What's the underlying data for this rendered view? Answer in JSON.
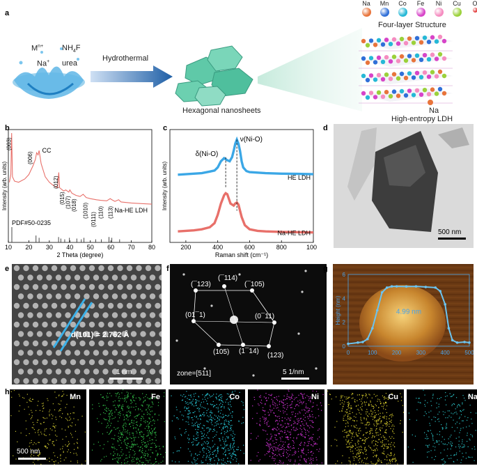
{
  "panel_labels": [
    "a",
    "b",
    "c",
    "d",
    "e",
    "f",
    "g",
    "h"
  ],
  "panel_a": {
    "reagents": {
      "metal": "M",
      "metal_sup": "n+",
      "fluoride": "NH",
      "fluoride_sub": "4",
      "fluoride_tail": "F",
      "sodium": "Na",
      "sodium_sup": "+",
      "urea": "urea"
    },
    "arrow_label": "Hydrothermal",
    "sheets_label": "Hexagonal nanosheets",
    "structure_title": "Four-layer Structure",
    "structure_caption": "High-entropy LDH",
    "na_callout": "Na",
    "legend": [
      {
        "label": "Na",
        "color": "#e8743b"
      },
      {
        "label": "Mn",
        "color": "#2f6fd8"
      },
      {
        "label": "Co",
        "color": "#25b8d6"
      },
      {
        "label": "Fe",
        "color": "#d744c8"
      },
      {
        "label": "Ni",
        "color": "#f58cc0"
      },
      {
        "label": "Cu",
        "color": "#9bd13a"
      },
      {
        "label": "O",
        "color": "#e23b3b"
      },
      {
        "label": "H",
        "color": "#e6d23a"
      }
    ]
  },
  "chart_data": [
    {
      "type": "line",
      "panel": "b",
      "xlabel": "2 Theta (degree)",
      "ylabel": "Intensity (arb. units)",
      "xlim": [
        10,
        80
      ],
      "xticks": [
        10,
        20,
        30,
        40,
        50,
        60,
        70,
        80
      ],
      "series_label": "Na-HE LDH",
      "reference_label": "PDF#50-0235",
      "peak_labels": [
        "(003)",
        "(006)",
        "CC",
        "(012)",
        "(015)",
        "(107)",
        "(018)",
        "(1010)",
        "(0111)",
        "(110)",
        "(113)"
      ],
      "reference_lines": [
        11.7,
        23.5,
        25.0,
        34.5,
        35.6,
        37.5,
        39.8,
        43.4,
        45.6,
        46.9,
        52.6,
        55.4,
        59.1,
        60.5,
        64.3
      ],
      "reference_heights": [
        1,
        0.45,
        0.3,
        0.35,
        0.25,
        0.2,
        0.3,
        0.25,
        0.2,
        0.3,
        0.2,
        0.2,
        0.35,
        0.3,
        0.2
      ],
      "pattern": [
        [
          10.5,
          0.55
        ],
        [
          11.2,
          0.62
        ],
        [
          11.6,
          1.0
        ],
        [
          12.0,
          0.6
        ],
        [
          13,
          0.56
        ],
        [
          15,
          0.55
        ],
        [
          18,
          0.58
        ],
        [
          20,
          0.62
        ],
        [
          22,
          0.7
        ],
        [
          23.2,
          0.76
        ],
        [
          23.8,
          0.82
        ],
        [
          24.5,
          0.8
        ],
        [
          25,
          0.84
        ],
        [
          25.5,
          0.78
        ],
        [
          26,
          0.72
        ],
        [
          27,
          0.66
        ],
        [
          28,
          0.6
        ],
        [
          30,
          0.55
        ],
        [
          32,
          0.52
        ],
        [
          34,
          0.5
        ],
        [
          34.6,
          0.64
        ],
        [
          35,
          0.5
        ],
        [
          37,
          0.47
        ],
        [
          38,
          0.48
        ],
        [
          39.5,
          0.46
        ],
        [
          40,
          0.48
        ],
        [
          41,
          0.45
        ],
        [
          43,
          0.43
        ],
        [
          45,
          0.42
        ],
        [
          46.5,
          0.44
        ],
        [
          48,
          0.41
        ],
        [
          50,
          0.4
        ],
        [
          53,
          0.39
        ],
        [
          55,
          0.385
        ],
        [
          58,
          0.38
        ],
        [
          59.7,
          0.4
        ],
        [
          60.5,
          0.39
        ],
        [
          62,
          0.375
        ],
        [
          63.8,
          0.39
        ],
        [
          65,
          0.37
        ],
        [
          70,
          0.36
        ],
        [
          75,
          0.355
        ],
        [
          80,
          0.35
        ]
      ]
    },
    {
      "type": "line",
      "panel": "c",
      "xlabel": "Raman shift (cm⁻¹)",
      "ylabel": "Intensity (arb. units)",
      "xlim": [
        100,
        1000
      ],
      "xticks": [
        200,
        400,
        600,
        800,
        1000
      ],
      "annotations": [
        "δ(Ni-O)",
        "ν(Ni-O)"
      ],
      "series": [
        {
          "name": "HE LDH",
          "color": "#3ba7e6",
          "x": [
            150,
            200,
            250,
            300,
            350,
            380,
            400,
            420,
            440,
            460,
            475,
            490,
            500,
            510,
            520,
            530,
            540,
            550,
            560,
            580,
            600,
            650,
            700,
            800,
            900,
            1000
          ],
          "y": [
            0.63,
            0.635,
            0.64,
            0.645,
            0.66,
            0.67,
            0.7,
            0.76,
            0.79,
            0.77,
            0.76,
            0.8,
            0.86,
            0.93,
            0.97,
            0.93,
            0.86,
            0.76,
            0.7,
            0.665,
            0.655,
            0.65,
            0.645,
            0.64,
            0.638,
            0.635
          ]
        },
        {
          "name": "Na-HE LDH",
          "color": "#e8706a",
          "x": [
            150,
            200,
            250,
            300,
            350,
            380,
            400,
            420,
            440,
            450,
            460,
            480,
            500,
            510,
            520,
            530,
            540,
            550,
            570,
            600,
            650,
            700,
            800,
            900,
            1000
          ],
          "y": [
            0.08,
            0.085,
            0.09,
            0.1,
            0.12,
            0.16,
            0.24,
            0.35,
            0.43,
            0.45,
            0.44,
            0.35,
            0.33,
            0.35,
            0.36,
            0.34,
            0.28,
            0.22,
            0.14,
            0.1,
            0.085,
            0.08,
            0.075,
            0.072,
            0.07
          ]
        }
      ]
    },
    {
      "type": "line",
      "panel": "g",
      "xlabel": "",
      "ylabel": "Height (nm)",
      "xlim": [
        0,
        500
      ],
      "ylim": [
        0,
        6
      ],
      "xticks": [
        0,
        100,
        200,
        300,
        400,
        500
      ],
      "yticks": [
        0,
        2,
        4,
        6
      ],
      "annotation": "4.99 nm",
      "profile": {
        "x": [
          0,
          40,
          60,
          80,
          100,
          120,
          140,
          160,
          180,
          200,
          240,
          280,
          320,
          360,
          380,
          400,
          415,
          430,
          450,
          480,
          500
        ],
        "y": [
          0.2,
          0.3,
          0.35,
          0.6,
          1.5,
          3.0,
          4.5,
          4.9,
          5.0,
          5.0,
          4.99,
          5.0,
          4.95,
          4.9,
          4.6,
          3.5,
          1.5,
          0.5,
          0.3,
          0.35,
          0.3
        ]
      }
    }
  ],
  "panel_d": {
    "scale": "500 nm"
  },
  "panel_e": {
    "lattice": "d(101) = 2.762 Å",
    "scale": "1 nm"
  },
  "panel_f": {
    "spots": [
      "(̅123)",
      "(̅114)",
      "(̅105)",
      "(01̅ 1)",
      "(0̅1 1)",
      "(105)",
      "(11̅4)",
      "(123)"
    ],
    "spot_text": [
      "(¯123)",
      "(¯114)",
      "(¯105)",
      "(01¯1)",
      "(0¯11)",
      "(105)",
      "(1¯14)",
      "(123)"
    ],
    "zone": "zone=[511]",
    "scale": "5 1/nm"
  },
  "panel_h": {
    "elements": [
      {
        "label": "Mn",
        "color": "#c9c230"
      },
      {
        "label": "Fe",
        "color": "#33c24a"
      },
      {
        "label": "Co",
        "color": "#27c6d6"
      },
      {
        "label": "Ni",
        "color": "#d233d6"
      },
      {
        "label": "Cu",
        "color": "#d4c92c"
      },
      {
        "label": "Na",
        "color": "#2bc4c8"
      }
    ],
    "scale": "500 nm"
  }
}
